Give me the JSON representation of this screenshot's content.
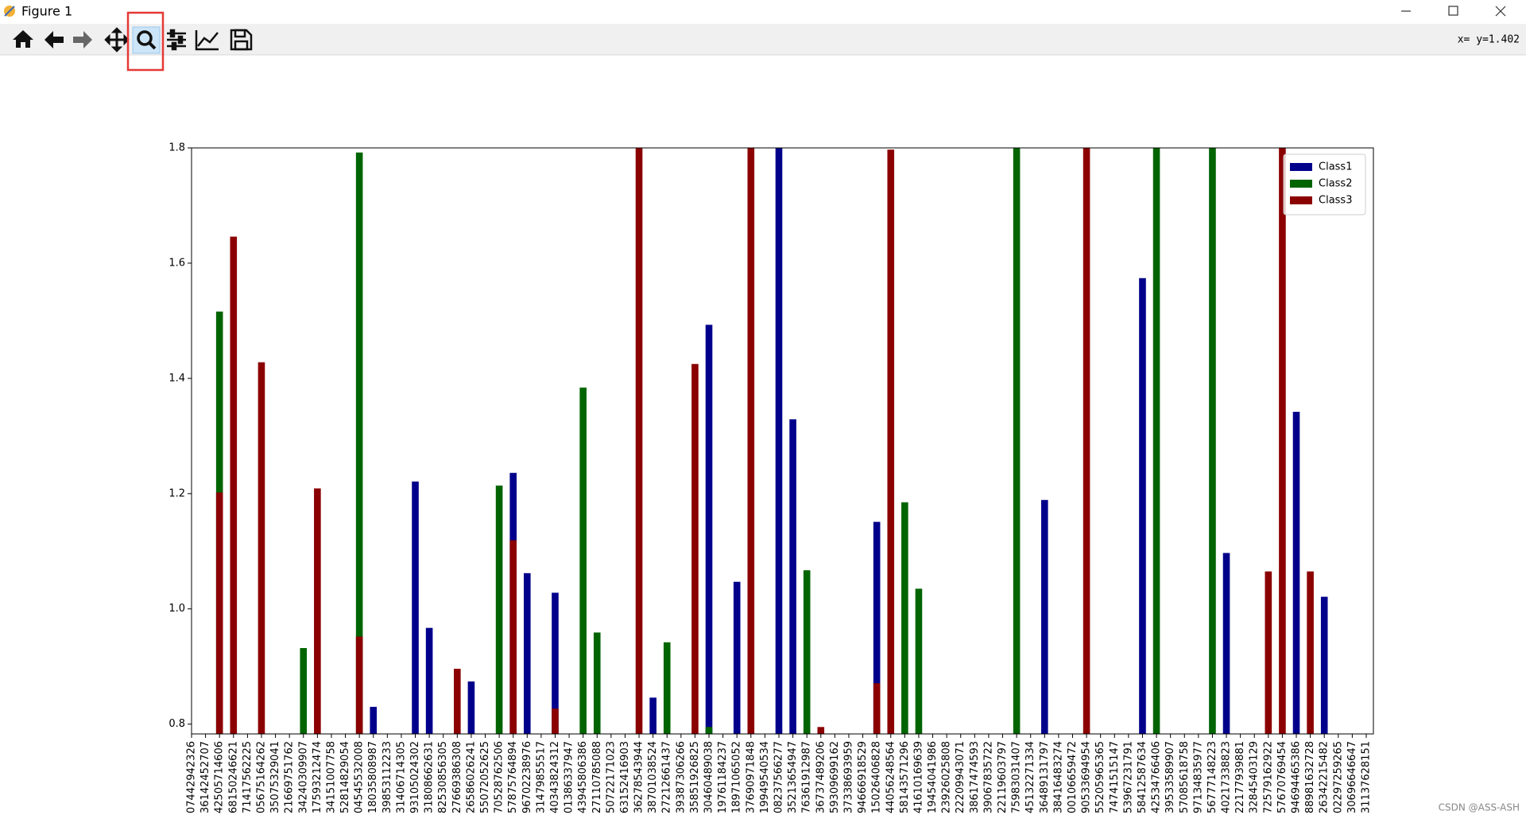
{
  "window": {
    "title": "Figure 1",
    "coords": "x= y=1.402",
    "watermark": "CSDN @ASS-ASH"
  },
  "chart_data": {
    "type": "bar",
    "categories": [
      "07442942326",
      "36142452707",
      "42505714606",
      "68150246621",
      "71417562225",
      "05675164262",
      "35075329041",
      "21669751762",
      "34240309907",
      "17593212474",
      "34151007758",
      "52814829054",
      "04545532008",
      "18035808987",
      "39853112233",
      "31406714305",
      "93105024302",
      "31808662631",
      "82530856305",
      "27669386308",
      "26586026241",
      "55072052625",
      "70528762506",
      "57875764894",
      "96702238976",
      "31479855517",
      "40343824312",
      "01386337947",
      "43945806386",
      "27110785088",
      "50722171023",
      "63152416903",
      "36278543944",
      "38701038524",
      "27212661437",
      "39387306266",
      "35851926825",
      "30460489038",
      "19761184237",
      "18971065052",
      "37690971848",
      "19949540534",
      "08237566277",
      "35213654947",
      "76361912987",
      "36737489206",
      "59309699162",
      "37338693959",
      "94666918529",
      "15026406828",
      "44056248564",
      "58143571296",
      "41610169639",
      "19454041986",
      "23926025808",
      "22209943071",
      "38617474593",
      "39067835722",
      "22119603797",
      "75983031407",
      "45132271334",
      "36489131797",
      "38416483274",
      "00106659472",
      "90533694954",
      "55205965365",
      "74741515147",
      "53967231791",
      "58412587634",
      "42534766406",
      "39533589907",
      "57085618758",
      "97134835977",
      "56777148223",
      "40217338823",
      "22177939881",
      "32845403129",
      "72579162922",
      "57670769454",
      "94694465386",
      "88981632728",
      "26342215482",
      "02297259265",
      "30696646647",
      "31137628151"
    ],
    "series": [
      {
        "name": "Class1",
        "color": "#00008b",
        "values": [
          null,
          null,
          null,
          null,
          null,
          null,
          null,
          null,
          null,
          null,
          null,
          null,
          null,
          0.83,
          null,
          null,
          1.221,
          0.967,
          null,
          null,
          0.874,
          null,
          null,
          1.236,
          1.062,
          null,
          1.028,
          null,
          null,
          null,
          null,
          null,
          null,
          0.846,
          null,
          null,
          null,
          1.493,
          null,
          1.047,
          null,
          null,
          1.8,
          1.329,
          null,
          null,
          null,
          null,
          null,
          1.151,
          null,
          null,
          null,
          null,
          null,
          null,
          null,
          null,
          null,
          null,
          null,
          1.189,
          null,
          null,
          null,
          null,
          null,
          null,
          1.574,
          null,
          null,
          null,
          null,
          null,
          1.097,
          null,
          null,
          null,
          null,
          1.342,
          null,
          1.021,
          null,
          null,
          null
        ]
      },
      {
        "name": "Class2",
        "color": "#006400",
        "values": [
          null,
          null,
          1.516,
          null,
          null,
          null,
          null,
          null,
          0.932,
          null,
          null,
          null,
          1.792,
          null,
          null,
          null,
          null,
          null,
          null,
          null,
          null,
          null,
          1.214,
          null,
          null,
          null,
          null,
          null,
          1.384,
          0.959,
          null,
          null,
          null,
          null,
          0.942,
          null,
          null,
          0.795,
          null,
          null,
          null,
          null,
          null,
          null,
          1.067,
          null,
          null,
          null,
          null,
          null,
          null,
          1.185,
          1.035,
          null,
          null,
          null,
          null,
          null,
          null,
          1.8,
          null,
          null,
          null,
          null,
          null,
          null,
          null,
          null,
          null,
          1.8,
          null,
          null,
          null,
          1.8,
          null,
          null,
          null,
          null,
          null,
          null,
          null,
          null,
          null,
          null,
          null
        ]
      },
      {
        "name": "Class3",
        "color": "#8b0000",
        "values": [
          null,
          null,
          1.202,
          1.646,
          null,
          1.428,
          null,
          null,
          null,
          1.209,
          null,
          null,
          0.952,
          null,
          null,
          null,
          null,
          null,
          null,
          0.896,
          null,
          null,
          null,
          1.119,
          null,
          null,
          0.827,
          null,
          null,
          null,
          null,
          null,
          1.8,
          null,
          null,
          null,
          1.425,
          null,
          null,
          null,
          1.8,
          null,
          null,
          null,
          null,
          0.795,
          null,
          null,
          null,
          0.871,
          1.797,
          null,
          null,
          null,
          null,
          null,
          null,
          null,
          null,
          null,
          null,
          null,
          null,
          null,
          1.8,
          null,
          null,
          null,
          null,
          null,
          null,
          null,
          null,
          null,
          null,
          null,
          null,
          1.065,
          1.8,
          null,
          1.065,
          null,
          null,
          null,
          null
        ]
      }
    ],
    "ylim": [
      0.783,
      1.8
    ],
    "yticks": [
      0.8,
      {
        "value": 1,
        "label": "1.0"
      },
      1.2,
      1.4,
      1.6,
      1.8
    ],
    "legend": "upper right"
  }
}
